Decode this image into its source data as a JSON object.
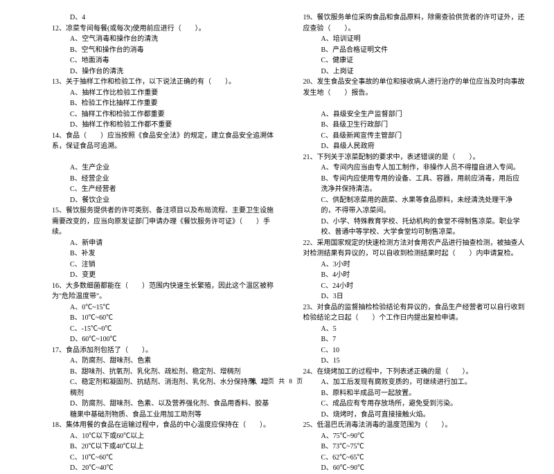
{
  "footer": "第 2 页 共 8 页",
  "left": [
    {
      "cls": "opt",
      "t": "D、4"
    },
    {
      "cls": "q",
      "t": "12、凉菜专间每餐(或每次)使用前应进行（　　）。"
    },
    {
      "cls": "opt",
      "t": "A、空气消毒和操作台的清洗"
    },
    {
      "cls": "opt",
      "t": "B、空气和操作台的消毒"
    },
    {
      "cls": "opt",
      "t": "C、地面消毒"
    },
    {
      "cls": "opt",
      "t": "D、操作台的清洗"
    },
    {
      "cls": "q",
      "t": "13、关于抽样工作和检验工作，以下说法正确的有（　　）。"
    },
    {
      "cls": "opt",
      "t": "A、抽样工作比检验工作重要"
    },
    {
      "cls": "opt",
      "t": "B、检验工作比抽样工作重要"
    },
    {
      "cls": "opt",
      "t": "C、抽样工作和检验工作都重要"
    },
    {
      "cls": "opt",
      "t": "D、抽样工作和检验工作都不重要"
    },
    {
      "cls": "q",
      "t": "14、食品（　　）应当按照《食品安全法》的规定，建立食品安全追溯体系，保证食品可追溯。"
    },
    {
      "cls": "opt",
      "t": ""
    },
    {
      "cls": "opt",
      "t": "A、生产企业"
    },
    {
      "cls": "opt",
      "t": "B、经营企业"
    },
    {
      "cls": "opt",
      "t": "C、生产经营者"
    },
    {
      "cls": "opt",
      "t": "D、餐饮企业"
    },
    {
      "cls": "q",
      "t": "15、餐饮服务提供者的许可类别、备注项目以及布局流程、主要卫生设施需要改变的，应当向原发证部门申请办理《餐饮服务许可证》（　　）手续。"
    },
    {
      "cls": "opt",
      "t": "A、新申请"
    },
    {
      "cls": "opt",
      "t": "B、补发"
    },
    {
      "cls": "opt",
      "t": "C、注销"
    },
    {
      "cls": "opt",
      "t": "D、变更"
    },
    {
      "cls": "q",
      "t": "16、大多数细菌都能在（　　）范围内快速生长繁殖，因此这个温区被称为\"危险温度带\"。"
    },
    {
      "cls": "opt",
      "t": "A、0℃~15℃"
    },
    {
      "cls": "opt",
      "t": "B、10℃~60℃"
    },
    {
      "cls": "opt",
      "t": "C、-15℃~0℃"
    },
    {
      "cls": "opt",
      "t": "D、60℃~100℃"
    },
    {
      "cls": "q",
      "t": "17、食品添加剂包括了（　　）。"
    },
    {
      "cls": "opt",
      "t": "A、防腐剂、甜味剂、色素"
    },
    {
      "cls": "opt",
      "t": "B、甜味剂、抗氧剂、乳化剂、疏松剂、稳定剂、增稠剂"
    },
    {
      "cls": "opt",
      "t": "C、稳定剂和凝固剂、抗结剂、消泡剂、乳化剂、水分保持剂、增稠剂"
    },
    {
      "cls": "opt",
      "t": "D、防腐剂、甜味剂、色素、以及营养强化剂、食品用香料、胶基糖果中基础剂物质、食品工业用加工助剂等"
    },
    {
      "cls": "q",
      "t": "18、集体用餐的食品在运输过程中，食品的中心温度应保持在（　　）。"
    },
    {
      "cls": "opt",
      "t": "A、10℃以下或60℃以上"
    },
    {
      "cls": "opt",
      "t": "B、20℃以下或40℃以上"
    },
    {
      "cls": "opt",
      "t": "C、10℃~60℃"
    },
    {
      "cls": "opt",
      "t": "D、20℃~40℃"
    }
  ],
  "right": [
    {
      "cls": "q",
      "t": "19、餐饮服务单位采购食品和食品原料，除需查验供货者的许可证外，还应查验（　　）。"
    },
    {
      "cls": "opt",
      "t": "A、培训证明"
    },
    {
      "cls": "opt",
      "t": "B、产品合格证明文件"
    },
    {
      "cls": "opt",
      "t": "C、健康证"
    },
    {
      "cls": "opt",
      "t": "D、上岗证"
    },
    {
      "cls": "q",
      "t": "20、发生食品安全事故的单位和接收病人进行治疗的单位应当及时向事故发生地（　　）报告。"
    },
    {
      "cls": "opt",
      "t": ""
    },
    {
      "cls": "opt",
      "t": "A、县级安全生产监督部门"
    },
    {
      "cls": "opt",
      "t": "B、县级卫生行政部门"
    },
    {
      "cls": "opt",
      "t": "C、县级新闻宣传主管部门"
    },
    {
      "cls": "opt",
      "t": "D、县级人民政府"
    },
    {
      "cls": "q",
      "t": "21、下列关于凉菜配制的要求中，表述错误的是（　　）。"
    },
    {
      "cls": "opt",
      "t": "A、专间内应当由专人加工制作，非操作人员不得擅自进入专间。"
    },
    {
      "cls": "opt",
      "t": "B、专间内应使用专用的设备、工具、容器，用前应消毒，用后应洗净并保持清洁。"
    },
    {
      "cls": "opt",
      "t": "C、供配制凉菜用的蔬菜、水果等食品原料，未经清洗处理干净的，不得带入凉菜间。"
    },
    {
      "cls": "opt",
      "t": "D、小学、特殊教育学校、托幼机构的食堂不得制售凉菜。职业学校、普通中等学校、大学食堂均可制售凉菜。"
    },
    {
      "cls": "q",
      "t": "22、采用国家规定的快速检测方法对食用农产品进行抽查检测，被抽查人对检测结果有异议的，可以自收到检测结果时起（　　）内申请复检。"
    },
    {
      "cls": "opt",
      "t": "A、3小时"
    },
    {
      "cls": "opt",
      "t": "B、4小时"
    },
    {
      "cls": "opt",
      "t": "C、24小时"
    },
    {
      "cls": "opt",
      "t": "D、3日"
    },
    {
      "cls": "q",
      "t": "23、对食品的监督抽检检验结论有异议的，食品生产经营者可以自行收到检验结论之日起（　　）个工作日内提出复检申请。"
    },
    {
      "cls": "opt",
      "t": "A、5"
    },
    {
      "cls": "opt",
      "t": "B、7"
    },
    {
      "cls": "opt",
      "t": "C、10"
    },
    {
      "cls": "opt",
      "t": "D、15"
    },
    {
      "cls": "q",
      "t": "24、在烧烤加工的过程中，下列表述正确的是（　　）。"
    },
    {
      "cls": "opt",
      "t": "A、加工后发现有腐败变质的，可继续进行加工。"
    },
    {
      "cls": "opt",
      "t": "B、原料和半成品可一起放置。"
    },
    {
      "cls": "opt",
      "t": "C、成品应有专用存放场所，避免受到污染。"
    },
    {
      "cls": "opt",
      "t": "D、烧烤时，食品可直接接触火焰。"
    },
    {
      "cls": "q",
      "t": "25、低温巴氏消毒法消毒的温度范围为（　　）。"
    },
    {
      "cls": "opt",
      "t": "A、75℃~90℃"
    },
    {
      "cls": "opt",
      "t": "B、73℃~75℃"
    },
    {
      "cls": "opt",
      "t": "C、62℃~65℃"
    },
    {
      "cls": "opt",
      "t": "D、60℃~90℃"
    }
  ]
}
